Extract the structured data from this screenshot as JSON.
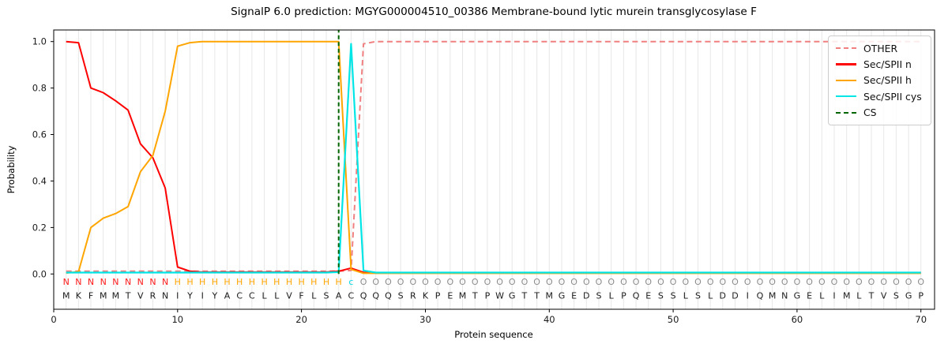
{
  "title": "SignalP 6.0 prediction: MGYG000004510_00386 Membrane-bound lytic murein transglycosylase F",
  "xlabel": "Protein sequence",
  "ylabel": "Probability",
  "legend": {
    "position": "upper right",
    "items": [
      {
        "id": "other",
        "label": "OTHER",
        "color": "#f08080",
        "dashed": true
      },
      {
        "id": "sec-spii-n",
        "label": "Sec/SPII n",
        "color": "#ff0000",
        "dashed": false
      },
      {
        "id": "sec-spii-h",
        "label": "Sec/SPII h",
        "color": "#ffa500",
        "dashed": false
      },
      {
        "id": "sec-spii-cys",
        "label": "Sec/SPII cys",
        "color": "#00e5e5",
        "dashed": false
      },
      {
        "id": "cs",
        "label": "CS",
        "color": "#006400",
        "dashed": true
      }
    ]
  },
  "chart_data": {
    "type": "line",
    "title": "SignalP 6.0 prediction: MGYG000004510_00386 Membrane-bound lytic murein transglycosylase F",
    "xlabel": "Protein sequence",
    "ylabel": "Probability",
    "xlim": [
      0,
      71.1
    ],
    "ylim": [
      -0.15,
      1.05
    ],
    "xticks": [
      0,
      10,
      20,
      30,
      40,
      50,
      60,
      70
    ],
    "yticks": [
      0.0,
      0.2,
      0.4,
      0.6,
      0.8,
      1.0
    ],
    "grid": "vertical gridline at every residue position 1-70",
    "grid_color": "#e7e7e7",
    "legend_position": "upper right",
    "sequence": "MKFMMTVRNIYIYACCLLVFLSACQQQSRKPEMTPWGTTMGEDSLPQESSLSLDDIQMNGELIMLTVSGP",
    "region_labels": "NNNNNNNNNHHHHHHHHHHHHHHcOOOOOOOOOOOOOOOOOOOOOOOOOOOOOOOOOOOOOOOOOOOOOO",
    "region_colors": {
      "N": "#ff1a1a",
      "H": "#ffa500",
      "c": "#00d8e0",
      "O": "#8c8c8c"
    },
    "sequence_color": "#1a1a1a",
    "x_positions": "residues numbered 1-70",
    "series": [
      {
        "id": "other",
        "name": "OTHER",
        "color": "#f08080",
        "style": "dashed",
        "width": 2,
        "values": [
          0.012,
          0.012,
          0.012,
          0.012,
          0.012,
          0.012,
          0.012,
          0.012,
          0.012,
          0.012,
          0.012,
          0.012,
          0.012,
          0.012,
          0.012,
          0.012,
          0.012,
          0.012,
          0.012,
          0.012,
          0.012,
          0.012,
          0.012,
          0.015,
          0.99,
          1,
          1,
          1,
          1,
          1,
          1,
          1,
          1,
          1,
          1,
          1,
          1,
          1,
          1,
          1,
          1,
          1,
          1,
          1,
          1,
          1,
          1,
          1,
          1,
          1,
          1,
          1,
          1,
          1,
          1,
          1,
          1,
          1,
          1,
          1,
          1,
          1,
          1,
          1,
          1,
          1,
          1,
          1,
          1,
          1
        ]
      },
      {
        "id": "sec-spii-n",
        "name": "Sec/SPII n",
        "color": "#ff0000",
        "style": "solid",
        "width": 2,
        "values": [
          1.0,
          0.995,
          0.8,
          0.78,
          0.745,
          0.705,
          0.56,
          0.5,
          0.37,
          0.03,
          0.012,
          0.008,
          0.008,
          0.008,
          0.008,
          0.008,
          0.008,
          0.008,
          0.008,
          0.008,
          0.008,
          0.008,
          0.012,
          0.025,
          0.007,
          0.005,
          0.005,
          0.005,
          0.005,
          0.005,
          0.005,
          0.005,
          0.005,
          0.005,
          0.005,
          0.005,
          0.005,
          0.005,
          0.005,
          0.005,
          0.005,
          0.005,
          0.005,
          0.005,
          0.005,
          0.005,
          0.005,
          0.005,
          0.005,
          0.005,
          0.005,
          0.005,
          0.005,
          0.005,
          0.005,
          0.005,
          0.005,
          0.005,
          0.005,
          0.005,
          0.005,
          0.005,
          0.005,
          0.005,
          0.005,
          0.005,
          0.005,
          0.005,
          0.005,
          0.005
        ]
      },
      {
        "id": "sec-spii-h",
        "name": "Sec/SPII h",
        "color": "#ffa500",
        "style": "solid",
        "width": 2,
        "values": [
          0.004,
          0.01,
          0.2,
          0.24,
          0.26,
          0.29,
          0.44,
          0.51,
          0.7,
          0.98,
          0.995,
          1,
          1,
          1,
          1,
          1,
          1,
          1,
          1,
          1,
          1,
          1,
          1,
          0.02,
          0.003,
          0.003,
          0.003,
          0.003,
          0.003,
          0.003,
          0.003,
          0.003,
          0.003,
          0.003,
          0.003,
          0.003,
          0.003,
          0.003,
          0.003,
          0.003,
          0.003,
          0.003,
          0.003,
          0.003,
          0.003,
          0.003,
          0.003,
          0.003,
          0.003,
          0.003,
          0.003,
          0.003,
          0.003,
          0.003,
          0.003,
          0.003,
          0.003,
          0.003,
          0.003,
          0.003,
          0.003,
          0.003,
          0.003,
          0.003,
          0.003,
          0.003,
          0.003,
          0.003,
          0.003,
          0.003
        ]
      },
      {
        "id": "sec-spii-cys",
        "name": "Sec/SPII cys",
        "color": "#00e5e5",
        "style": "solid",
        "width": 2.2,
        "values": [
          0.006,
          0.006,
          0.006,
          0.006,
          0.006,
          0.006,
          0.006,
          0.006,
          0.006,
          0.006,
          0.006,
          0.006,
          0.006,
          0.006,
          0.006,
          0.006,
          0.006,
          0.006,
          0.006,
          0.006,
          0.006,
          0.006,
          0.008,
          0.99,
          0.015,
          0.006,
          0.006,
          0.006,
          0.006,
          0.006,
          0.006,
          0.006,
          0.006,
          0.006,
          0.006,
          0.006,
          0.006,
          0.006,
          0.006,
          0.006,
          0.006,
          0.006,
          0.006,
          0.006,
          0.006,
          0.006,
          0.006,
          0.006,
          0.006,
          0.006,
          0.006,
          0.006,
          0.006,
          0.006,
          0.006,
          0.006,
          0.006,
          0.006,
          0.006,
          0.006,
          0.006,
          0.006,
          0.006,
          0.006,
          0.006,
          0.006,
          0.006,
          0.006,
          0.006,
          0.006
        ]
      }
    ],
    "cs_marker": {
      "name": "CS",
      "x": 23,
      "color": "#006400",
      "style": "dashed",
      "y_from": 0.0,
      "y_to": "plot top"
    }
  }
}
